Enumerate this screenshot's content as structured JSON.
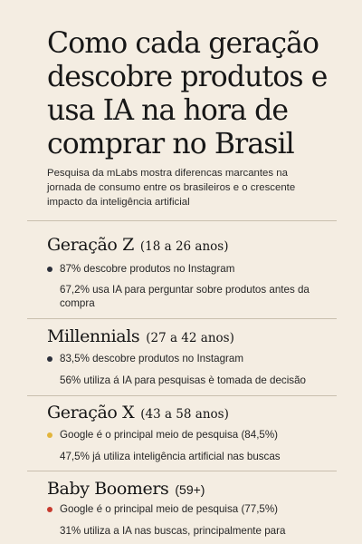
{
  "title": "Como cada geração descobre produtos e usa IA na hora de comprar no Brasil",
  "subtitle": "Pesquisa da mLabs mostra diferencas marcantes na jornada de consumo entre os brasileiros e o crescente impacto da inteligência artificial",
  "sections": [
    {
      "name": "Geração Z",
      "age": "(18 a 26 anos)",
      "dot_color": "#2b2f3a",
      "items": [
        "87% descobre produtos no Instagram",
        "67,2% usa IA para perguntar sobre produtos antes da compra"
      ]
    },
    {
      "name": "Millennials",
      "age": "(27 a 42 anos)",
      "dot_color": "#2b2f3a",
      "items": [
        "83,5% descobre produtos no Instagram",
        "56% utiliza á IA para pesquisas è tomada de decisão"
      ]
    },
    {
      "name": "Geração X",
      "age": "(43 a 58 anos)",
      "dot_color": "#e2b53c",
      "items": [
        "Google é o principal meio de pesquisa (84,5%)",
        "47,5% já utiliza inteligência artificial nas buscas"
      ]
    },
    {
      "name": "Baby Boomers",
      "age": "(59+)",
      "dot_color": "#c73a2e",
      "items": [
        "Google é o principal meio de pesquisa (77,5%)",
        "31% utiliza a IA nas buscas, principalmente para"
      ]
    }
  ]
}
